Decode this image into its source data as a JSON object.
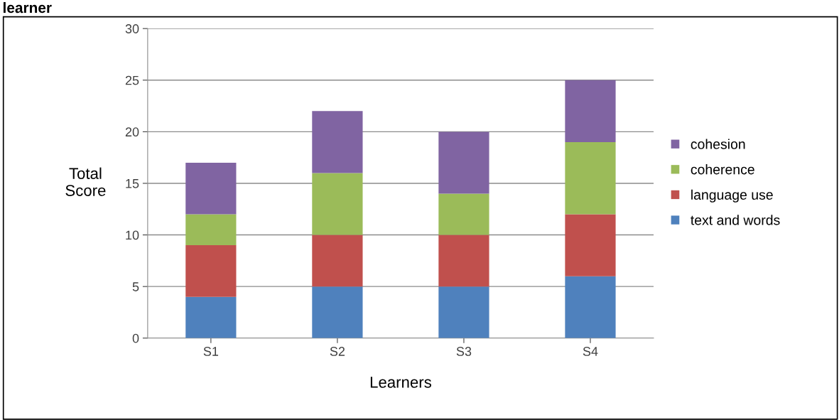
{
  "chart_data": {
    "type": "bar",
    "stacked": true,
    "categories": [
      "S1",
      "S2",
      "S3",
      "S4"
    ],
    "series": [
      {
        "name": "text and words",
        "color": "#4f81bd",
        "values": [
          4,
          5,
          5,
          6
        ]
      },
      {
        "name": "language use",
        "color": "#c0504d",
        "values": [
          5,
          5,
          5,
          6
        ]
      },
      {
        "name": "coherence",
        "color": "#9bbb59",
        "values": [
          3,
          6,
          4,
          7
        ]
      },
      {
        "name": "cohesion",
        "color": "#8064a2",
        "values": [
          5,
          6,
          6,
          6
        ]
      }
    ],
    "xlabel": "Learners",
    "ylabel": "Total\nScore",
    "ylim": [
      0,
      30
    ],
    "yticks": [
      0,
      5,
      10,
      15,
      20,
      25,
      30
    ],
    "grid": "y",
    "legend": "right",
    "annotations": [
      "learner"
    ]
  }
}
